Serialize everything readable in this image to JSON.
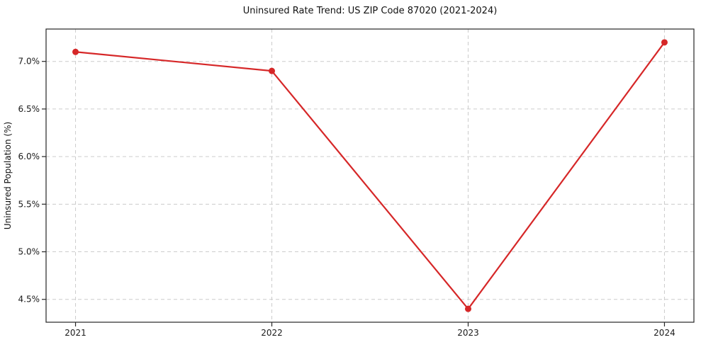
{
  "chart_data": {
    "type": "line",
    "title": "Uninsured Rate Trend: US ZIP Code 87020 (2021-2024)",
    "ylabel": "Uninsured Population (%)",
    "xlabel": "",
    "categories": [
      "2021",
      "2022",
      "2023",
      "2024"
    ],
    "values": [
      7.1,
      6.9,
      4.4,
      7.2
    ],
    "yticks": [
      4.5,
      5.0,
      5.5,
      6.0,
      6.5,
      7.0
    ],
    "ytick_labels": [
      "4.5%",
      "5.0%",
      "5.5%",
      "6.0%",
      "6.5%",
      "7.0%"
    ],
    "ylim": [
      4.26,
      7.34
    ],
    "grid": true,
    "grid_style": "dashed",
    "legend_position": "none",
    "marker": "circle",
    "colors": {
      "line": "#d62728",
      "grid": "#cccccc",
      "axis": "#262626",
      "text": "#1a1a1a",
      "background": "#ffffff"
    }
  }
}
